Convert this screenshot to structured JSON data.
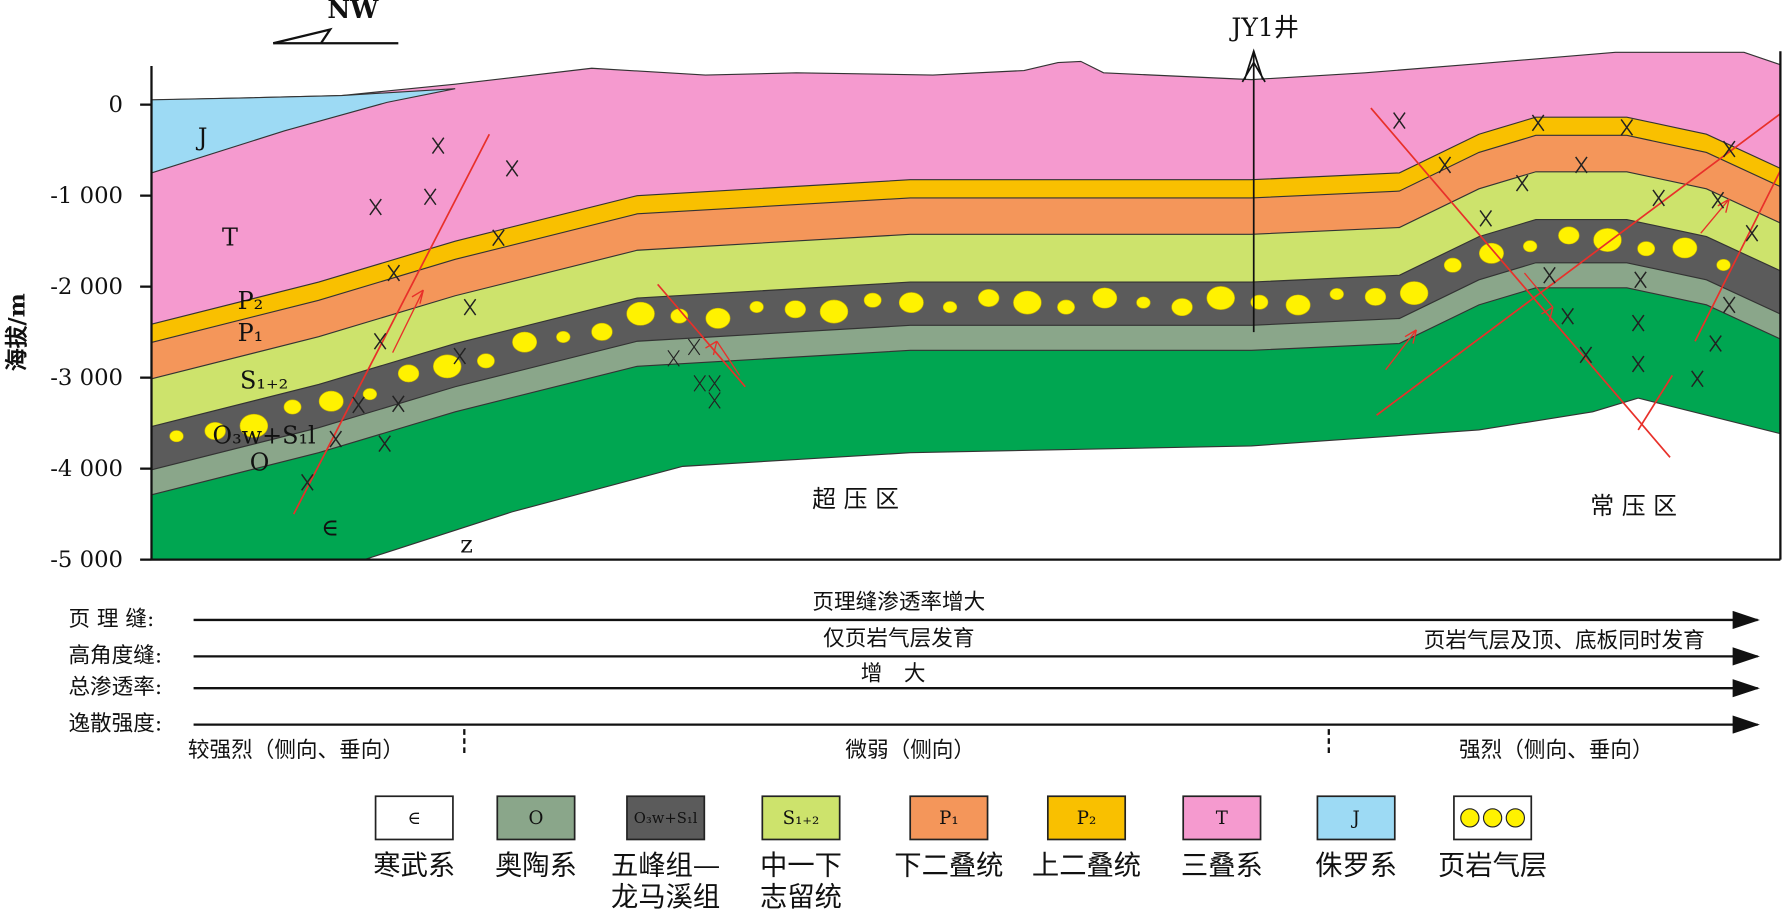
{
  "direction": "NW",
  "well": "JY1井",
  "y_axis": {
    "title": "海拔/m",
    "ticks": [
      {
        "value": 0,
        "label": "0"
      },
      {
        "value": -1000,
        "label": "-1 000"
      },
      {
        "value": -2000,
        "label": "-2 000"
      },
      {
        "value": -3000,
        "label": "-3 000"
      },
      {
        "value": -4000,
        "label": "-4 000"
      },
      {
        "value": -5000,
        "label": "-5 000"
      }
    ]
  },
  "layer_labels": [
    "J",
    "T",
    "P₂",
    "P₁",
    "S₁₊₂",
    "O₃w+S₁l",
    "O",
    "∈",
    "z"
  ],
  "zones": [
    "超 压 区",
    "常 压 区"
  ],
  "rows": [
    {
      "label": "页 理 缝:",
      "texts": [
        "页理缝渗透率增大"
      ]
    },
    {
      "label": "高角度缝:",
      "texts": [
        "仅页岩气层发育",
        "页岩气层及顶、底板同时发育"
      ]
    },
    {
      "label": "总渗透率:",
      "texts": [
        "增　大"
      ]
    },
    {
      "label": "逸散强度:",
      "texts": []
    }
  ],
  "escape_levels": [
    "较强烈（侧向、垂向）",
    "微弱（侧向）",
    "强烈（侧向、垂向）"
  ],
  "legend": [
    {
      "symbol": "∈",
      "label": [
        "寒武系"
      ]
    },
    {
      "symbol": "O",
      "label": [
        "奥陶系"
      ]
    },
    {
      "symbol": "O₃w+S₁l",
      "label": [
        "五峰组—",
        "龙马溪组"
      ]
    },
    {
      "symbol": "S₁₊₂",
      "label": [
        "中一下",
        "志留统"
      ]
    },
    {
      "symbol": "P₁",
      "label": [
        "下二叠统"
      ]
    },
    {
      "symbol": "P₂",
      "label": [
        "上二叠统"
      ]
    },
    {
      "symbol": "T",
      "label": [
        "三叠系"
      ]
    },
    {
      "symbol": "J",
      "label": [
        "侏罗系"
      ]
    },
    {
      "symbol": null,
      "label": [
        "页岩气层"
      ]
    }
  ]
}
